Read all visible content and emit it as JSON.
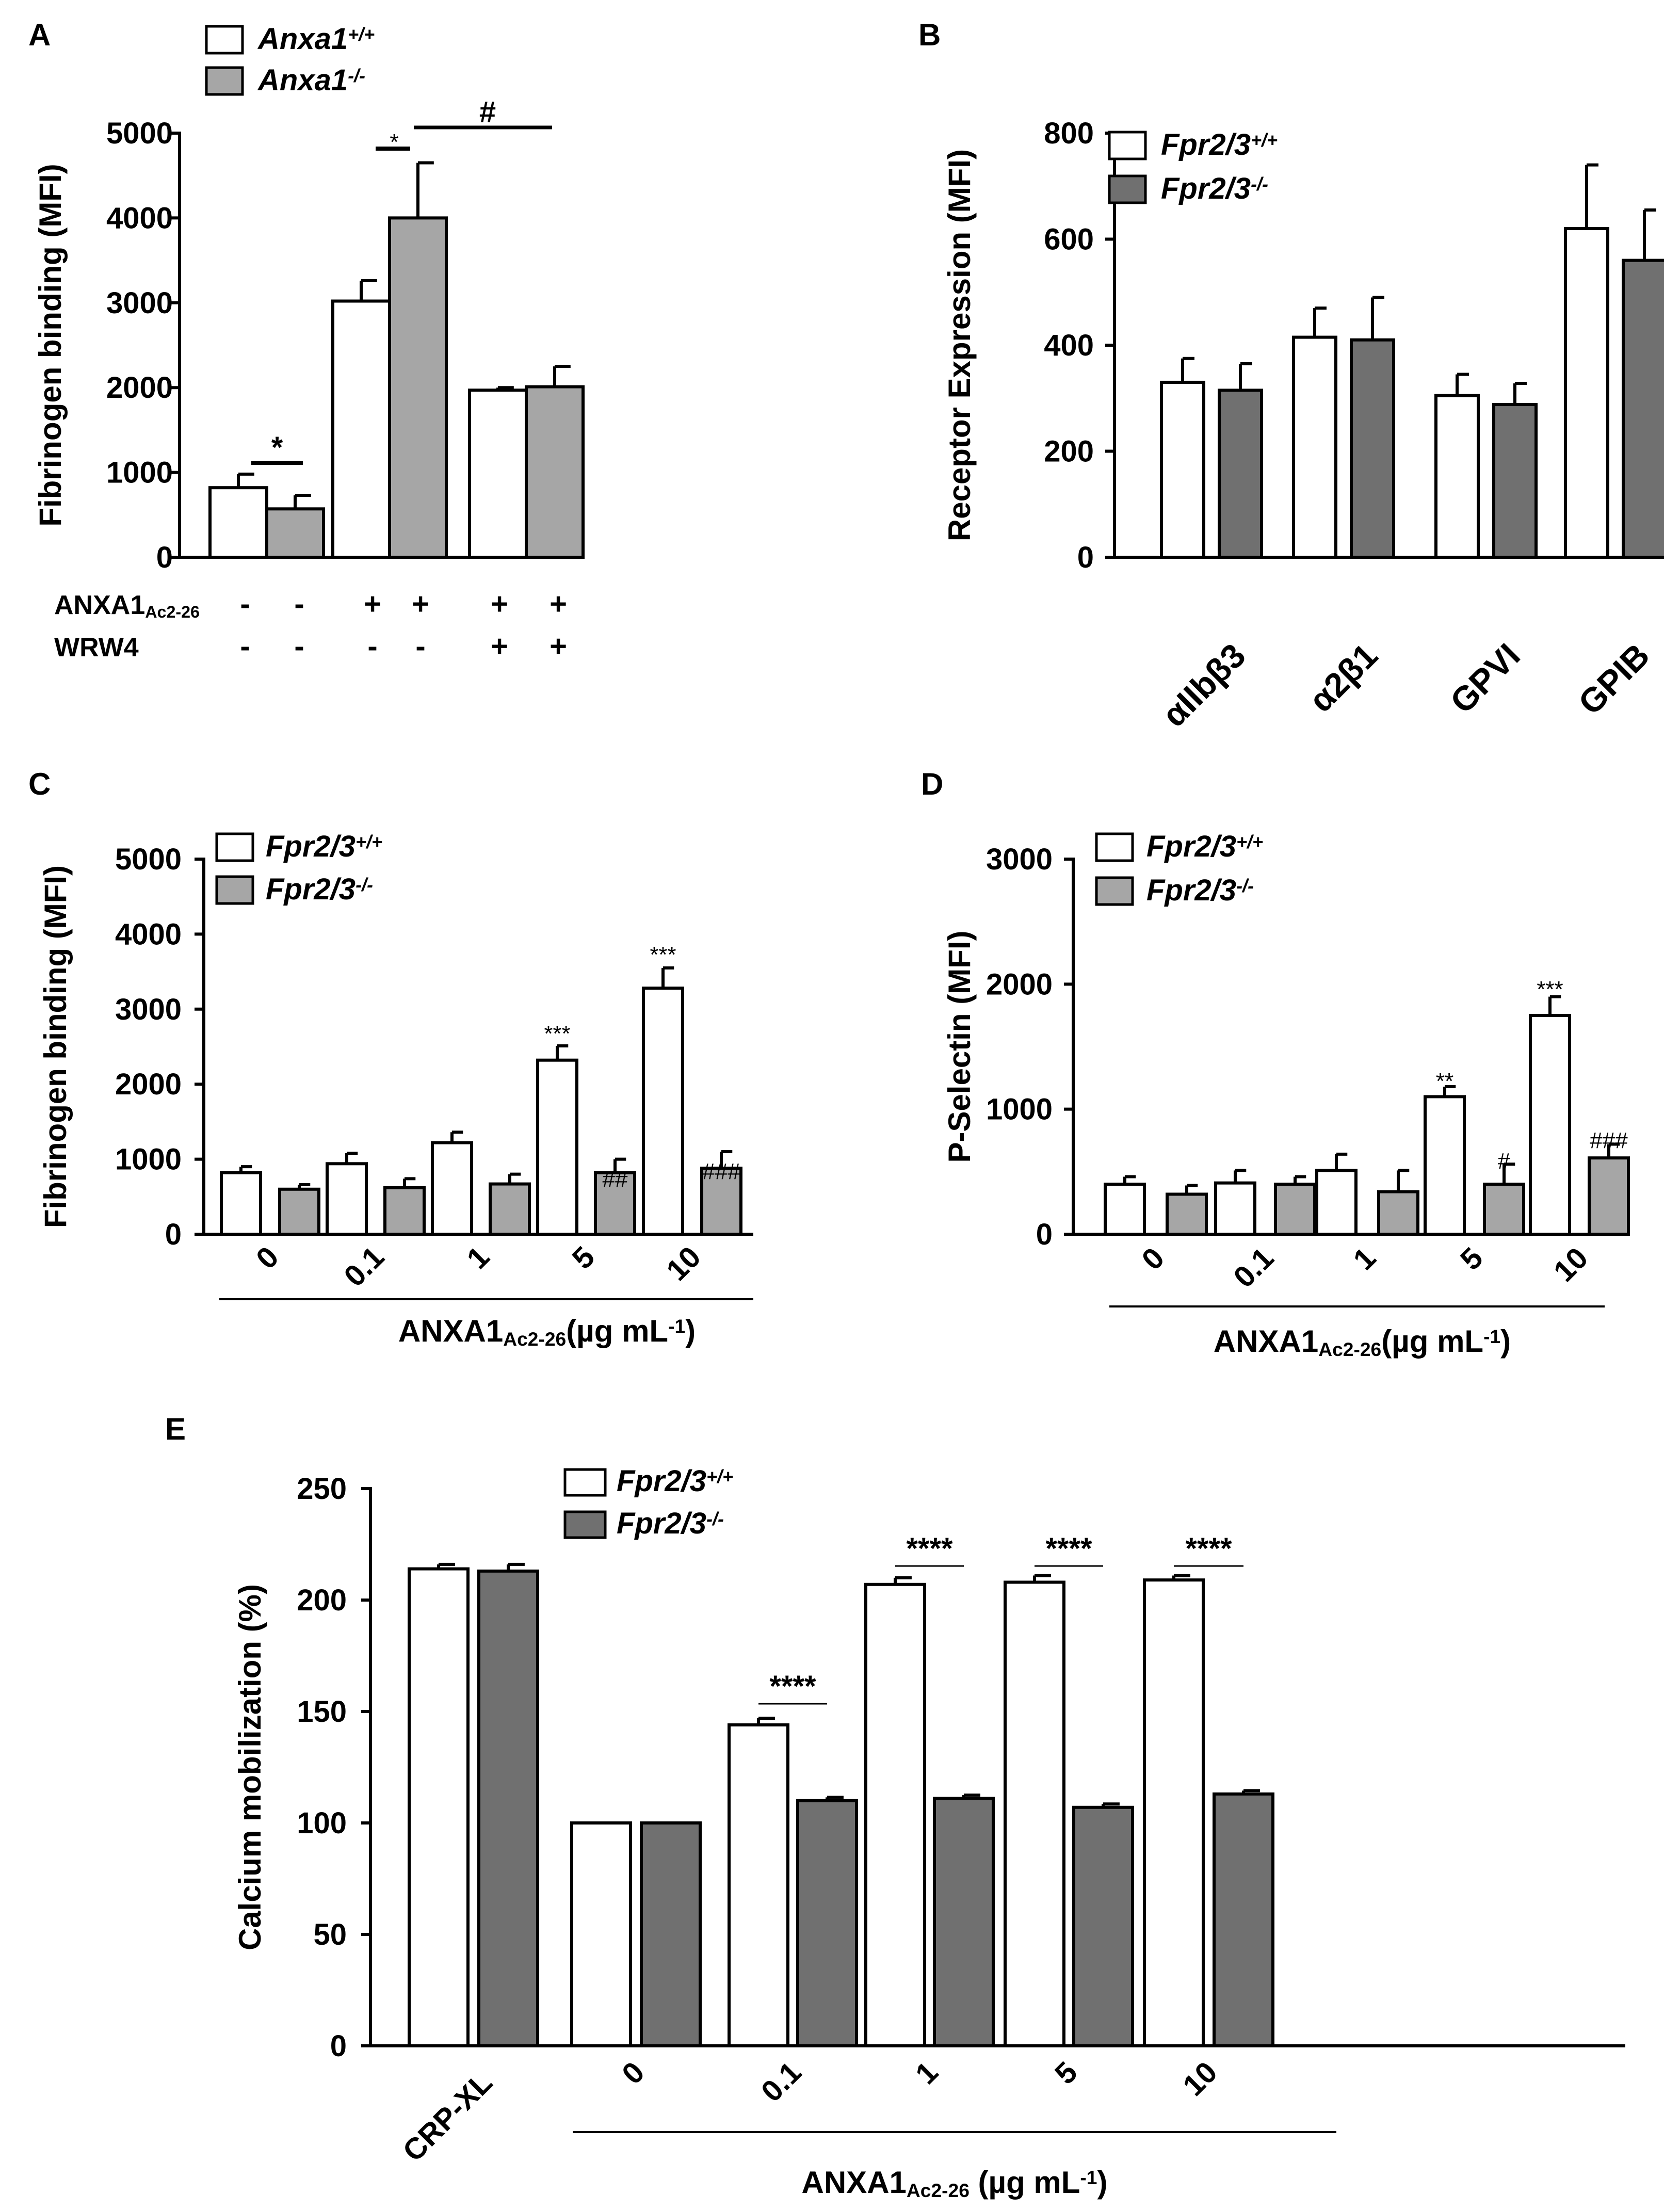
{
  "colors": {
    "white_bar": "#ffffff",
    "grey_light": "#a6a6a6",
    "grey_dark": "#707070",
    "ink": "#000000"
  },
  "chart_data": [
    {
      "id": "A",
      "label": "A",
      "type": "bar",
      "ylabel": "Fibrinogen binding (MFI)",
      "ylim": [
        0,
        5000
      ],
      "yticks": [
        "0",
        "1000",
        "2000",
        "3000",
        "4000",
        "5000"
      ],
      "legend": [
        {
          "name": "Anxa1",
          "sup": "+/+"
        },
        {
          "name": "Anxa1",
          "sup": "-/-"
        }
      ],
      "groups": [
        {
          "values": [
            820,
            570
          ],
          "err": [
            160,
            160
          ]
        },
        {
          "values": [
            3020,
            4000
          ],
          "err": [
            240,
            650
          ]
        },
        {
          "values": [
            1970,
            2010
          ],
          "err": [
            30,
            240
          ]
        }
      ],
      "significance": [
        {
          "text": "*"
        },
        {
          "text": "*"
        },
        {
          "text": "#"
        }
      ],
      "treatments": [
        {
          "name": "ANXA1",
          "sub": "Ac2-26",
          "signs": [
            "-",
            "-",
            "+",
            "+",
            "+",
            "+"
          ]
        },
        {
          "name": "WRW4",
          "sub": "",
          "signs": [
            "-",
            "-",
            "-",
            "-",
            "+",
            "+"
          ]
        }
      ]
    },
    {
      "id": "B",
      "label": "B",
      "type": "bar",
      "ylabel": "Receptor Expression (MFI)",
      "ylim": [
        0,
        800
      ],
      "yticks": [
        "0",
        "200",
        "400",
        "600",
        "800"
      ],
      "legend": [
        {
          "name": "Fpr2/3",
          "sup": "+/+"
        },
        {
          "name": "Fpr2/3",
          "sup": "-/-"
        }
      ],
      "categories": [
        "αIIbβ3",
        "α2β1",
        "GPVI",
        "GPIB"
      ],
      "groups": [
        {
          "values": [
            330,
            315
          ],
          "err": [
            45,
            50
          ]
        },
        {
          "values": [
            415,
            410
          ],
          "err": [
            55,
            80
          ]
        },
        {
          "values": [
            305,
            288
          ],
          "err": [
            40,
            40
          ]
        },
        {
          "values": [
            620,
            560
          ],
          "err": [
            120,
            95
          ]
        }
      ]
    },
    {
      "id": "C",
      "label": "C",
      "type": "bar",
      "ylabel": "Fibrinogen binding (MFI)",
      "ylim": [
        0,
        5000
      ],
      "yticks": [
        "0",
        "1000",
        "2000",
        "3000",
        "4000",
        "5000"
      ],
      "legend": [
        {
          "name": "Fpr2/3",
          "sup": "+/+"
        },
        {
          "name": "Fpr2/3",
          "sup": "-/-"
        }
      ],
      "categories": [
        "0",
        "0.1",
        "1",
        "5",
        "10"
      ],
      "xlabel": {
        "main": "ANXA1",
        "sub": "Ac2-26",
        "tail": "(µg mL",
        "sup": "-1",
        "end": ")"
      },
      "groups": [
        {
          "values": [
            820,
            600
          ],
          "err": [
            80,
            60
          ]
        },
        {
          "values": [
            940,
            620
          ],
          "err": [
            140,
            120
          ]
        },
        {
          "values": [
            1220,
            670
          ],
          "err": [
            140,
            130
          ]
        },
        {
          "values": [
            2320,
            820
          ],
          "err": [
            190,
            180
          ]
        },
        {
          "values": [
            3280,
            880
          ],
          "err": [
            270,
            220
          ]
        }
      ],
      "significance": [
        {
          "text": "***"
        },
        {
          "text": "##"
        },
        {
          "text": "***"
        },
        {
          "text": "###"
        }
      ]
    },
    {
      "id": "D",
      "label": "D",
      "type": "bar",
      "ylabel": "P-Selectin (MFI)",
      "ylim": [
        0,
        3000
      ],
      "yticks": [
        "0",
        "1000",
        "2000",
        "3000"
      ],
      "legend": [
        {
          "name": "Fpr2/3",
          "sup": "+/+"
        },
        {
          "name": "Fpr2/3",
          "sup": "-/-"
        }
      ],
      "categories": [
        "0",
        "0.1",
        "1",
        "5",
        "10"
      ],
      "xlabel": {
        "main": "ANXA1",
        "sub": "Ac2-26",
        "tail": "(µg mL",
        "sup": "-1",
        "end": ")"
      },
      "groups": [
        {
          "values": [
            400,
            320
          ],
          "err": [
            60,
            70
          ]
        },
        {
          "values": [
            410,
            400
          ],
          "err": [
            100,
            60
          ]
        },
        {
          "values": [
            510,
            340
          ],
          "err": [
            130,
            170
          ]
        },
        {
          "values": [
            1100,
            400
          ],
          "err": [
            80,
            160
          ]
        },
        {
          "values": [
            1750,
            610
          ],
          "err": [
            150,
            110
          ]
        }
      ],
      "significance": [
        {
          "text": "**"
        },
        {
          "text": "#"
        },
        {
          "text": "***"
        },
        {
          "text": "###"
        }
      ]
    },
    {
      "id": "E",
      "label": "E",
      "type": "bar",
      "ylabel": "Calcium mobilization (%)",
      "ylim": [
        0,
        250
      ],
      "yticks": [
        "0",
        "50",
        "100",
        "150",
        "200",
        "250"
      ],
      "legend": [
        {
          "name": "Fpr2/3",
          "sup": "+/+"
        },
        {
          "name": "Fpr2/3",
          "sup": "-/-"
        }
      ],
      "categories": [
        "CRP-XL",
        "0",
        "0.1",
        "1",
        "5",
        "10"
      ],
      "xlabel": {
        "main": "ANXA1",
        "sub": "Ac2-26",
        "tail": " (µg mL",
        "sup": "-1",
        "end": ")"
      },
      "groups": [
        {
          "values": [
            214,
            213
          ],
          "err": [
            2,
            3
          ]
        },
        {
          "values": [
            100,
            100
          ],
          "err": [
            0,
            0
          ]
        },
        {
          "values": [
            144,
            110
          ],
          "err": [
            3,
            1.5
          ]
        },
        {
          "values": [
            207,
            111
          ],
          "err": [
            3,
            1.5
          ]
        },
        {
          "values": [
            208,
            107
          ],
          "err": [
            3,
            1.5
          ]
        },
        {
          "values": [
            209,
            113
          ],
          "err": [
            2,
            1.5
          ]
        }
      ],
      "significance": [
        {
          "text": "****"
        },
        {
          "text": "****"
        },
        {
          "text": "****"
        },
        {
          "text": "****"
        }
      ]
    }
  ]
}
